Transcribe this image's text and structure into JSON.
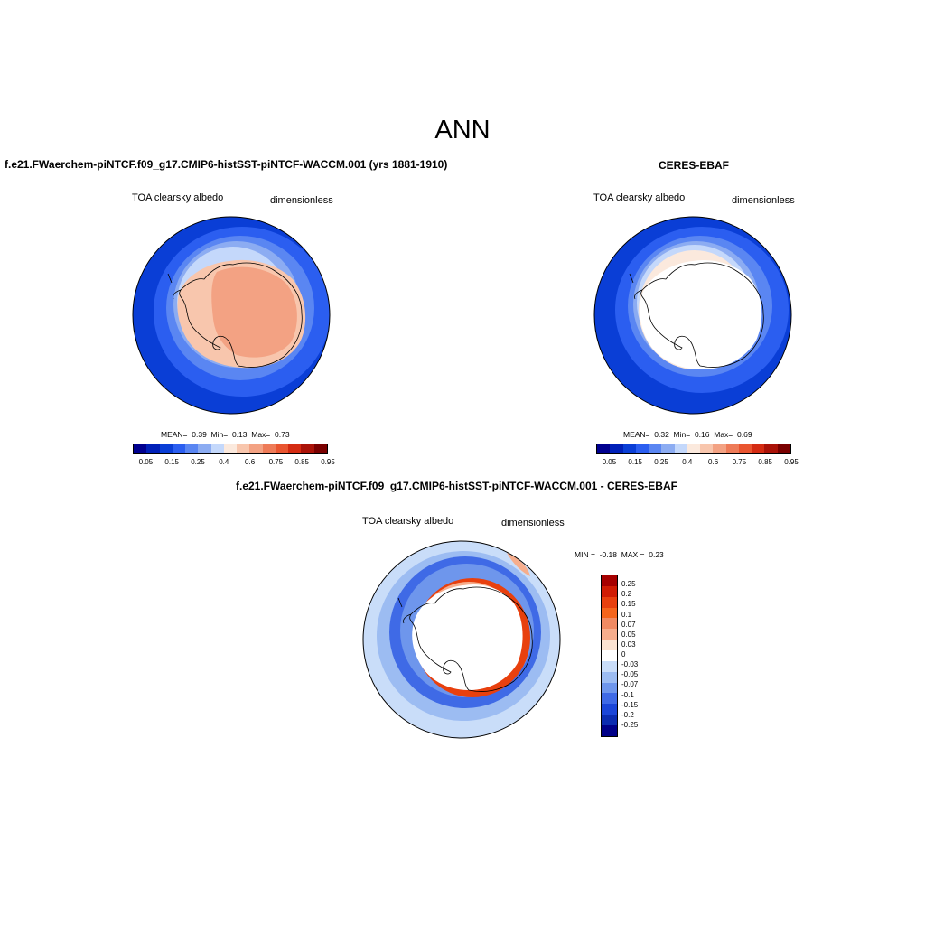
{
  "page_title": "ANN",
  "panels": [
    {
      "id": "model",
      "title": "f.e21.FWaerchem-piNTCF.f09_g17.CMIP6-histSST-piNTCF-WACCM.001 (yrs 1881-1910)",
      "variable": "TOA clearsky albedo",
      "units": "dimensionless",
      "stats": {
        "mean_label": "MEAN=",
        "mean": "0.39",
        "min_label": "Min=",
        "min": "0.13",
        "max_label": "Max=",
        "max": "0.73"
      }
    },
    {
      "id": "obs",
      "title": "CERES-EBAF",
      "variable": "TOA clearsky albedo",
      "units": "dimensionless",
      "stats": {
        "mean_label": "MEAN=",
        "mean": "0.32",
        "min_label": "Min=",
        "min": "0.16",
        "max_label": "Max=",
        "max": "0.69"
      }
    },
    {
      "id": "diff",
      "title": "f.e21.FWaerchem-piNTCF.f09_g17.CMIP6-histSST-piNTCF-WACCM.001 - CERES-EBAF",
      "variable": "TOA clearsky albedo",
      "units": "dimensionless",
      "stats": {
        "min_label": "MIN =",
        "min": "-0.18",
        "max_label": "MAX =",
        "max": "0.23"
      }
    }
  ],
  "colorbar_abs": {
    "colors": [
      "#00008f",
      "#0020b8",
      "#0a3ed6",
      "#2b5ef0",
      "#5a86f2",
      "#8cacf2",
      "#c4d8fb",
      "#fbe9dd",
      "#f8c6ad",
      "#f3a283",
      "#ee7b58",
      "#e95530",
      "#d42b12",
      "#aa1208",
      "#7a0000"
    ],
    "ticks": [
      "0.05",
      "0.15",
      "0.25",
      "0.4",
      "0.6",
      "0.75",
      "0.85",
      "0.95"
    ]
  },
  "colorbar_diff": {
    "colors": [
      "#a60000",
      "#d01c04",
      "#e8400e",
      "#f5651c",
      "#f08a62",
      "#f6ad8c",
      "#fbe3d2",
      "#ffffff",
      "#c9ddf9",
      "#9cbcf2",
      "#6e96ec",
      "#3f6ae6",
      "#1b46d8",
      "#0b2cb0",
      "#000088"
    ],
    "ticks": [
      "0.25",
      "0.2",
      "0.15",
      "0.1",
      "0.07",
      "0.05",
      "0.03",
      "0",
      "-0.03",
      "-0.05",
      "-0.07",
      "-0.1",
      "-0.15",
      "-0.2",
      "-0.25"
    ]
  },
  "map_colors": {
    "ocean_deep": "#0a3ed6",
    "ocean_mid": "#2b5ef0",
    "ocean_light": "#5a86f2",
    "ice_edge": "#8cacf2",
    "ice_pale": "#c4d8fb",
    "land_pale": "#f8c6ad",
    "land_mid": "#f3a283",
    "diff_pos": "#e8400e",
    "diff_neg": "#3f6ae6",
    "missing": "#ffffff"
  }
}
